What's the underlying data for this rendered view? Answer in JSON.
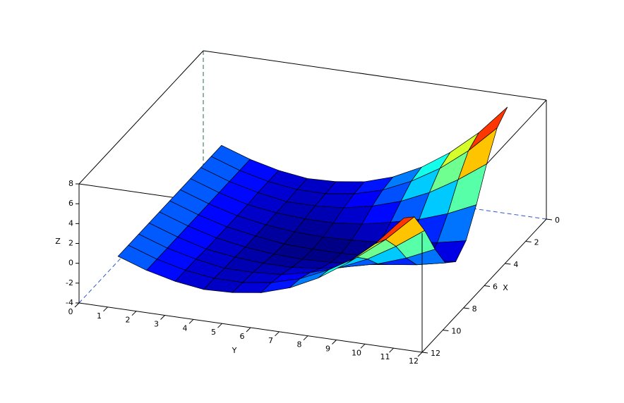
{
  "chart_data": {
    "type": "surface",
    "colormap": "jet",
    "edge_color": "#000000",
    "box_color": "#000000",
    "x_label": "X",
    "y_label": "Y",
    "z_label": "Z",
    "x": [
      1,
      2,
      3,
      4,
      5,
      6,
      7,
      8,
      9,
      10,
      11
    ],
    "y": [
      1,
      2,
      3,
      4,
      5,
      6,
      7,
      8,
      9,
      10,
      11
    ],
    "z": [
      [
        0,
        -1,
        -1.7,
        -2.1,
        -2.0,
        -1.6,
        -0.7,
        0.7,
        2.6,
        5.0,
        8
      ],
      [
        0,
        -1,
        -1.7,
        -2.1,
        -2.1,
        -1.7,
        -0.9,
        0.4,
        2.1,
        4.3,
        7.0
      ],
      [
        0,
        -1,
        -1.7,
        -2.2,
        -2.2,
        -2.0,
        -1.4,
        -0.5,
        0.8,
        2.5,
        4.5
      ],
      [
        0,
        -1,
        -1.8,
        -2.2,
        -2.4,
        -2.4,
        -2.1,
        -1.5,
        -0.8,
        0.2,
        1.5
      ],
      [
        0,
        -1,
        -1.8,
        -2.3,
        -2.6,
        -2.7,
        -2.6,
        -2.4,
        -2.0,
        -1.6,
        -1.0
      ],
      [
        0,
        -1,
        -1.8,
        -2.3,
        -2.7,
        -2.8,
        -2.8,
        -2.7,
        -2.5,
        -2.3,
        -2
      ],
      [
        0,
        -1,
        -1.8,
        -2.3,
        -2.6,
        -2.7,
        -2.6,
        -2.4,
        -2.0,
        -1.6,
        -1.0
      ],
      [
        0,
        -1,
        -1.8,
        -2.2,
        -2.4,
        -2.4,
        -2.1,
        -1.5,
        -0.8,
        0.2,
        1.5
      ],
      [
        0,
        -1,
        -1.7,
        -2.2,
        -2.2,
        -2.0,
        -1.4,
        -0.5,
        0.8,
        2.5,
        4.5
      ],
      [
        0,
        -1,
        -1.7,
        -2.1,
        -2.1,
        -1.7,
        -0.9,
        0.4,
        2.1,
        4.3,
        7.0
      ],
      [
        0,
        -1,
        -1.7,
        -2.1,
        -2.0,
        -1.6,
        -0.7,
        0.7,
        2.6,
        5.0,
        8
      ]
    ],
    "xlim": [
      0,
      12
    ],
    "xticks": [
      0,
      2,
      4,
      6,
      8,
      10,
      12
    ],
    "ylim": [
      0,
      12
    ],
    "yticks": [
      0,
      1,
      2,
      3,
      4,
      5,
      6,
      7,
      8,
      9,
      10,
      11,
      12
    ],
    "zlim": [
      -4,
      8
    ],
    "zticks": [
      -4,
      -2,
      0,
      2,
      4,
      6,
      8
    ]
  }
}
